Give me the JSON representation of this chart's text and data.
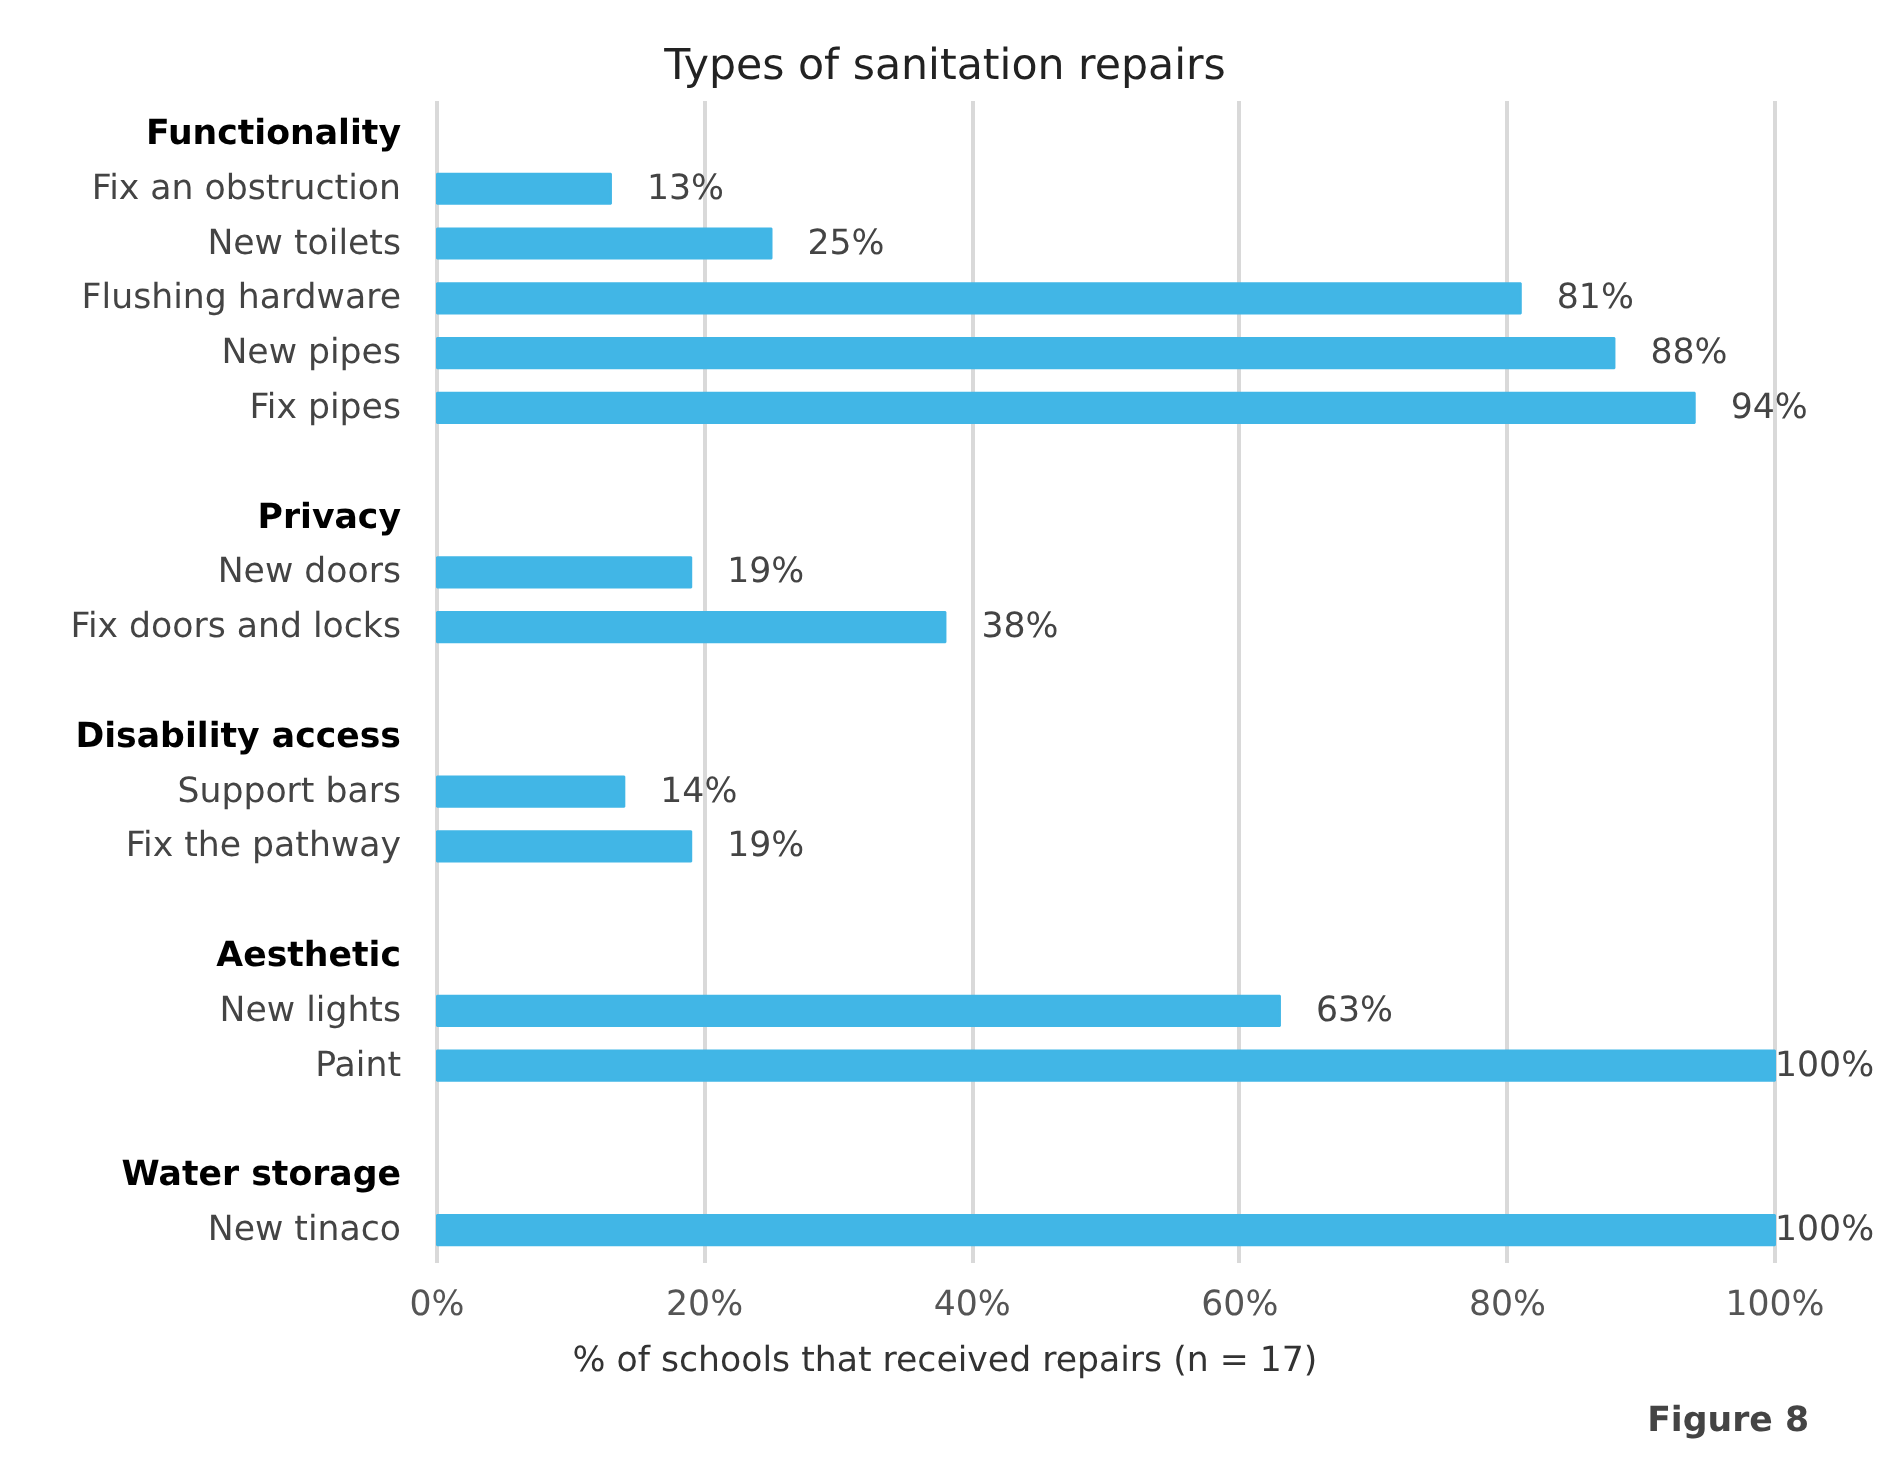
{
  "chart_data": {
    "type": "bar",
    "orientation": "horizontal",
    "title": "Types of sanitation repairs",
    "xlabel": "% of schools that received repairs (n = 17)",
    "categories": [
      "Functionality",
      "Fix an obstruction",
      "New toilets",
      "Flushing hardware",
      "New pipes",
      "Fix pipes",
      null,
      "Privacy",
      "New doors",
      "Fix doors and locks",
      null,
      "Disability access",
      "Support bars",
      "Fix the pathway",
      null,
      "Aesthetic",
      "New lights",
      "Paint",
      null,
      "Water storage",
      "New tinaco"
    ],
    "values": [
      null,
      13,
      25,
      81,
      88,
      94,
      null,
      null,
      19,
      38,
      null,
      null,
      14,
      19,
      null,
      null,
      63,
      100,
      null,
      null,
      100
    ],
    "value_labels": [
      null,
      "13%",
      "25%",
      "81%",
      "88%",
      "94%",
      null,
      null,
      "19%",
      "38%",
      null,
      null,
      "14%",
      "19%",
      null,
      null,
      "63%",
      "100%",
      null,
      null,
      "100%"
    ],
    "color": "#41b6e6",
    "xlim": [
      0,
      100
    ],
    "xticks": [
      {
        "value": 0,
        "label": "0%"
      },
      {
        "value": 20,
        "label": "20%"
      },
      {
        "value": 40,
        "label": "40%"
      },
      {
        "value": 60,
        "label": "60%"
      },
      {
        "value": 80,
        "label": "80%"
      },
      {
        "value": 100,
        "label": "100%"
      }
    ],
    "grid": "x",
    "annotations": [
      "Figure 8"
    ]
  }
}
